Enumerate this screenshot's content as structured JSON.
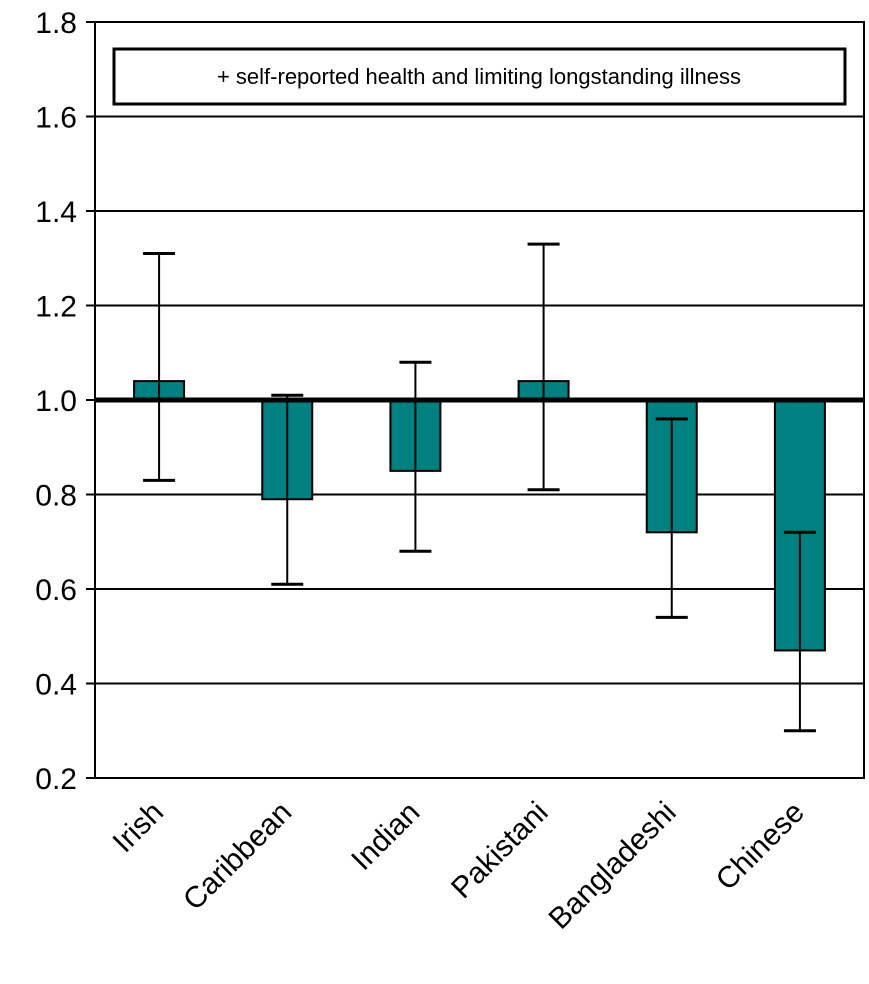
{
  "chart_data": {
    "type": "bar",
    "categories": [
      "Irish",
      "Caribbean",
      "Indian",
      "Pakistani",
      "Bangladeshi",
      "Chinese"
    ],
    "values": [
      1.04,
      0.79,
      0.85,
      1.04,
      0.72,
      0.47
    ],
    "error_low": [
      0.83,
      0.61,
      0.68,
      0.81,
      0.54,
      0.3
    ],
    "error_high": [
      1.31,
      1.01,
      1.08,
      1.33,
      0.96,
      0.72
    ],
    "baseline": 1.0,
    "ylim": [
      0.2,
      1.8
    ],
    "yticks": [
      "0.2",
      "0.4",
      "0.6",
      "0.8",
      "1.0",
      "1.2",
      "1.4",
      "1.6",
      "1.8"
    ],
    "ytick_values": [
      0.2,
      0.4,
      0.6,
      0.8,
      1.0,
      1.2,
      1.4,
      1.6,
      1.8
    ],
    "title": "",
    "xlabel": "",
    "ylabel": "",
    "grid": "horizontal",
    "legend": {
      "text": "+ self-reported health and limiting longstanding illness",
      "placement": "top"
    },
    "colors": {
      "bar": "#008080",
      "bar_border": "#000000",
      "grid": "#000000",
      "error": "#000000"
    }
  }
}
